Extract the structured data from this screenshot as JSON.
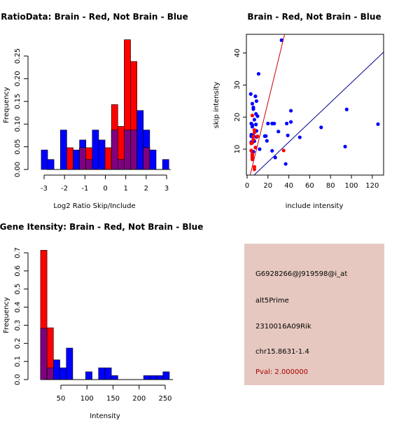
{
  "chart_data": [
    {
      "type": "bar",
      "title": "RatioData: Brain - Red, Not Brain - Blue",
      "xlabel": "Log2 Ratio Skip/Include",
      "ylabel": "Frequency",
      "xlim": [
        -3.2,
        3.2
      ],
      "ylim": [
        0,
        0.29
      ],
      "xticks": [
        "-3",
        "-2",
        "-1",
        "0",
        "1",
        "2",
        "3"
      ],
      "yticks": [
        "0.00",
        "0.05",
        "0.10",
        "0.15",
        "0.20",
        "0.25"
      ],
      "bin_start": -3.14,
      "bin_width": 0.3125,
      "series": [
        {
          "name": "Not Brain",
          "color": "#0000ff",
          "values": [
            0.043,
            0.022,
            0,
            0.087,
            0,
            0.043,
            0.065,
            0.022,
            0.087,
            0.065,
            0,
            0.087,
            0.022,
            0.087,
            0.087,
            0.13,
            0.087,
            0.043,
            0,
            0.022
          ]
        },
        {
          "name": "Brain",
          "color": "#ff0000",
          "values": [
            0,
            0,
            0,
            0,
            0.048,
            0,
            0.048,
            0.048,
            0,
            0,
            0.048,
            0.143,
            0.095,
            0.286,
            0.238,
            0,
            0.048,
            0,
            0,
            0
          ]
        }
      ],
      "overlap_color": "#800080"
    },
    {
      "type": "scatter",
      "title": "Brain - Red, Not Brain - Blue",
      "xlabel": "include intensity",
      "ylabel": "skip intensity",
      "xlim": [
        -1,
        130
      ],
      "ylim": [
        2,
        46
      ],
      "xticks": [
        "0",
        "20",
        "40",
        "60",
        "80",
        "100",
        "120"
      ],
      "yticks": [
        "10",
        "20",
        "30",
        "40"
      ],
      "series": [
        {
          "name": "Not Brain",
          "color": "#0000ff",
          "points": [
            [
              33,
              44
            ],
            [
              11,
              33.5
            ],
            [
              3.5,
              27.2
            ],
            [
              8,
              26.5
            ],
            [
              9,
              25
            ],
            [
              5,
              24.2
            ],
            [
              6,
              23
            ],
            [
              6,
              22.5
            ],
            [
              8.5,
              21
            ],
            [
              10,
              20.3
            ],
            [
              7,
              19.2
            ],
            [
              4,
              18
            ],
            [
              5,
              17.5
            ],
            [
              8.5,
              17.7
            ],
            [
              5,
              17
            ],
            [
              9,
              15.7
            ],
            [
              4,
              14.5
            ],
            [
              5,
              14
            ],
            [
              4,
              14
            ],
            [
              6,
              14.2
            ],
            [
              9,
              13.8
            ],
            [
              4,
              12.2
            ],
            [
              7,
              12.5
            ],
            [
              5,
              12
            ],
            [
              8,
              10.5
            ],
            [
              4,
              9.5
            ],
            [
              6,
              9.2
            ],
            [
              12,
              10
            ],
            [
              17,
              14.1
            ],
            [
              18,
              14.1
            ],
            [
              19,
              12.6
            ],
            [
              20,
              18
            ],
            [
              24,
              18
            ],
            [
              26,
              18
            ],
            [
              24,
              9.5
            ],
            [
              27,
              7.4
            ],
            [
              30,
              15.5
            ],
            [
              37,
              5.4
            ],
            [
              38,
              18
            ],
            [
              39,
              14.3
            ],
            [
              42,
              22
            ],
            [
              42,
              18.5
            ],
            [
              50.5,
              13.7
            ],
            [
              71,
              16.8
            ],
            [
              94,
              10.8
            ],
            [
              95.5,
              22.4
            ],
            [
              125.5,
              17.8
            ]
          ],
          "fit": {
            "slope": 0.309,
            "intercept": -0.16,
            "color": "#00008b"
          }
        },
        {
          "name": "Brain",
          "color": "#ff0000",
          "points": [
            [
              5,
              20.5
            ],
            [
              7,
              16
            ],
            [
              7,
              15.2
            ],
            [
              6,
              14
            ],
            [
              10,
              14
            ],
            [
              5,
              12
            ],
            [
              4,
              11.8
            ],
            [
              6,
              13
            ],
            [
              4,
              9.6
            ],
            [
              5,
              8.5
            ],
            [
              5,
              8
            ],
            [
              5,
              7.4
            ],
            [
              5,
              6.8
            ],
            [
              7,
              4.5
            ],
            [
              7,
              3.7
            ],
            [
              35,
              9.6
            ],
            [
              8,
              10.5
            ]
          ],
          "fit": {
            "slope": 1.33,
            "intercept": -2,
            "color": "#cc0000"
          }
        }
      ]
    },
    {
      "type": "bar",
      "title": "Gene Itensity: Brain - Red, Not Brain - Blue",
      "xlabel": "Intensity",
      "ylabel": "Frequency",
      "xlim": [
        5,
        265
      ],
      "ylim": [
        0,
        0.72
      ],
      "xticks": [
        "50",
        "100",
        "150",
        "200",
        "250"
      ],
      "yticks": [
        "0.0",
        "0.1",
        "0.2",
        "0.3",
        "0.4",
        "0.5",
        "0.6",
        "0.7"
      ],
      "bin_start": 11,
      "bin_width": 12.35,
      "series": [
        {
          "name": "Not Brain",
          "color": "#0000ff",
          "values": [
            0.283,
            0.065,
            0.109,
            0.065,
            0.174,
            0,
            0,
            0.043,
            0,
            0.065,
            0.065,
            0.022,
            0,
            0,
            0,
            0,
            0.022,
            0.022,
            0.022,
            0.043
          ]
        },
        {
          "name": "Brain",
          "color": "#ff0000",
          "values": [
            0.714,
            0.286,
            0,
            0,
            0,
            0,
            0,
            0,
            0,
            0,
            0,
            0,
            0,
            0,
            0,
            0,
            0,
            0,
            0,
            0
          ]
        }
      ],
      "overlap_color": "#800080"
    }
  ],
  "info": {
    "probe": "G6928266@J919598@i_at",
    "event": "alt5Prime",
    "gene": "2310016A09Rik",
    "location": "chr15.8631-1.4",
    "pval": "Pval: 2.000000",
    "pval_color": "#aa0000"
  }
}
